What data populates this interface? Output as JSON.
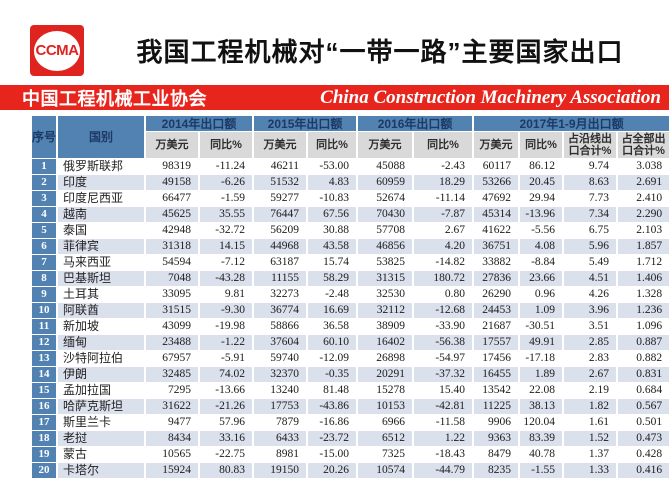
{
  "header": {
    "logo_text": "CCMA",
    "title": "我国工程机械对“一带一路”主要国家出口"
  },
  "banner": {
    "name_cn": "中国工程机械工业协会",
    "name_en": "China Construction Machinery Association"
  },
  "colors": {
    "banner_red": "#e8251d",
    "logo_red": "#df2420",
    "header_blue": "#5282b2",
    "header_text_navy": "#1b3a66",
    "subheader_gray": "#d9d9d9",
    "row_alt": "#dbe0ed"
  },
  "table": {
    "header": {
      "seq": "序号",
      "country": "国别"
    },
    "groups": [
      {
        "label": "2014年出口额",
        "cols": [
          "万美元",
          "同比%"
        ]
      },
      {
        "label": "2015年出口额",
        "cols": [
          "万美元",
          "同比%"
        ]
      },
      {
        "label": "2016年出口额",
        "cols": [
          "万美元",
          "同比%"
        ]
      },
      {
        "label": "2017年1-9月出口额",
        "cols": [
          "万美元",
          "同比%",
          "占沿线出口合计%",
          "占全部出口合计%"
        ]
      }
    ],
    "rows": [
      {
        "no": "1",
        "country": "俄罗斯联邦",
        "values": [
          "98319",
          "-11.24",
          "46211",
          "-53.00",
          "45088",
          "-2.43",
          "60117",
          "86.12",
          "9.74",
          "3.038"
        ]
      },
      {
        "no": "2",
        "country": "印度",
        "values": [
          "49158",
          "-6.26",
          "51532",
          "4.83",
          "60959",
          "18.29",
          "53266",
          "20.45",
          "8.63",
          "2.691"
        ]
      },
      {
        "no": "3",
        "country": "印度尼西亚",
        "values": [
          "66477",
          "-1.59",
          "59277",
          "-10.83",
          "52674",
          "-11.14",
          "47692",
          "29.94",
          "7.73",
          "2.410"
        ]
      },
      {
        "no": "4",
        "country": "越南",
        "values": [
          "45625",
          "35.55",
          "76447",
          "67.56",
          "70430",
          "-7.87",
          "45314",
          "-13.96",
          "7.34",
          "2.290"
        ]
      },
      {
        "no": "5",
        "country": "泰国",
        "values": [
          "42948",
          "-32.72",
          "56209",
          "30.88",
          "57708",
          "2.67",
          "41622",
          "-5.56",
          "6.75",
          "2.103"
        ]
      },
      {
        "no": "6",
        "country": "菲律宾",
        "values": [
          "31318",
          "14.15",
          "44968",
          "43.58",
          "46856",
          "4.20",
          "36751",
          "4.08",
          "5.96",
          "1.857"
        ]
      },
      {
        "no": "7",
        "country": "马来西亚",
        "values": [
          "54594",
          "-7.12",
          "63187",
          "15.74",
          "53825",
          "-14.82",
          "33882",
          "-8.84",
          "5.49",
          "1.712"
        ]
      },
      {
        "no": "8",
        "country": "巴基斯坦",
        "values": [
          "7048",
          "-43.28",
          "11155",
          "58.29",
          "31315",
          "180.72",
          "27836",
          "23.66",
          "4.51",
          "1.406"
        ]
      },
      {
        "no": "9",
        "country": "土耳其",
        "values": [
          "33095",
          "9.81",
          "32273",
          "-2.48",
          "32530",
          "0.80",
          "26290",
          "0.96",
          "4.26",
          "1.328"
        ]
      },
      {
        "no": "10",
        "country": "阿联酋",
        "values": [
          "31515",
          "-9.30",
          "36774",
          "16.69",
          "32112",
          "-12.68",
          "24453",
          "1.09",
          "3.96",
          "1.236"
        ]
      },
      {
        "no": "11",
        "country": "新加坡",
        "values": [
          "43099",
          "-19.98",
          "58866",
          "36.58",
          "38909",
          "-33.90",
          "21687",
          "-30.51",
          "3.51",
          "1.096"
        ]
      },
      {
        "no": "12",
        "country": "缅甸",
        "values": [
          "23488",
          "-1.22",
          "37604",
          "60.10",
          "16402",
          "-56.38",
          "17557",
          "49.91",
          "2.85",
          "0.887"
        ]
      },
      {
        "no": "13",
        "country": "沙特阿拉伯",
        "values": [
          "67957",
          "-5.91",
          "59740",
          "-12.09",
          "26898",
          "-54.97",
          "17456",
          "-17.18",
          "2.83",
          "0.882"
        ]
      },
      {
        "no": "14",
        "country": "伊朗",
        "values": [
          "32485",
          "74.02",
          "32370",
          "-0.35",
          "20291",
          "-37.32",
          "16455",
          "1.89",
          "2.67",
          "0.831"
        ]
      },
      {
        "no": "15",
        "country": "孟加拉国",
        "values": [
          "7295",
          "-13.66",
          "13240",
          "81.48",
          "15278",
          "15.40",
          "13542",
          "22.08",
          "2.19",
          "0.684"
        ]
      },
      {
        "no": "16",
        "country": "哈萨克斯坦",
        "values": [
          "31622",
          "-21.26",
          "17753",
          "-43.86",
          "10153",
          "-42.81",
          "11225",
          "38.13",
          "1.82",
          "0.567"
        ]
      },
      {
        "no": "17",
        "country": "斯里兰卡",
        "values": [
          "9477",
          "57.96",
          "7879",
          "-16.86",
          "6966",
          "-11.58",
          "9906",
          "120.04",
          "1.61",
          "0.501"
        ]
      },
      {
        "no": "18",
        "country": "老挝",
        "values": [
          "8434",
          "33.16",
          "6433",
          "-23.72",
          "6512",
          "1.22",
          "9363",
          "83.39",
          "1.52",
          "0.473"
        ]
      },
      {
        "no": "19",
        "country": "蒙古",
        "values": [
          "10565",
          "-22.75",
          "8981",
          "-15.00",
          "7325",
          "-18.43",
          "8479",
          "40.78",
          "1.37",
          "0.428"
        ]
      },
      {
        "no": "20",
        "country": "卡塔尔",
        "values": [
          "15924",
          "80.83",
          "19150",
          "20.26",
          "10574",
          "-44.79",
          "8235",
          "-1.55",
          "1.33",
          "0.416"
        ]
      }
    ]
  }
}
